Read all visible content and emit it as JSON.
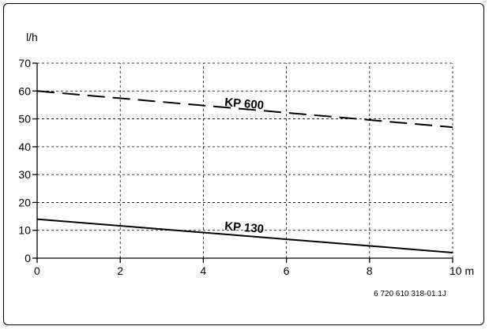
{
  "chart_data": {
    "type": "line",
    "ylabel": "l/h",
    "xunit": "m",
    "xlim": [
      0,
      10
    ],
    "ylim": [
      0,
      70
    ],
    "xticks": [
      "0",
      "2",
      "4",
      "6",
      "8",
      "10 m"
    ],
    "yticks": [
      "0",
      "10",
      "20",
      "30",
      "40",
      "50",
      "60",
      "70"
    ],
    "grid": true,
    "grid_style": "dashed",
    "series": [
      {
        "name": "KP 600",
        "line_style": "dashed",
        "color": "#000000",
        "x": [
          0,
          10
        ],
        "y": [
          60,
          47
        ]
      },
      {
        "name": "KP 130",
        "line_style": "solid",
        "color": "#000000",
        "x": [
          0,
          10
        ],
        "y": [
          14,
          2
        ]
      }
    ],
    "figure_ref": "6 720 610 318-01.1J"
  }
}
